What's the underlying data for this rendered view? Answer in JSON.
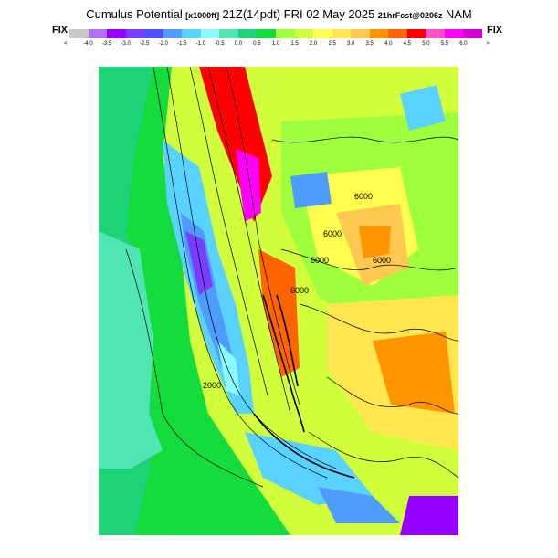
{
  "header": {
    "title_main": "Cumulus Potential",
    "title_units": "[x1000ft]",
    "title_time": "21Z(14pdt) FRI 02 May 2025",
    "title_fcst": "21hrFcst@0206z",
    "title_model": "NAM"
  },
  "scale": {
    "fix_left": "FIX",
    "fix_right": "FIX",
    "less_than": "<",
    "greater_than": ">",
    "tick_labels": [
      "-4.0",
      "-3.5",
      "-3.0",
      "-2.5",
      "-2.0",
      "-1.5",
      "-1.0",
      "-0.5",
      "0.0",
      "0.5",
      "1.0",
      "1.5",
      "2.0",
      "2.5",
      "3.0",
      "3.5",
      "4.0",
      "4.5",
      "5.0",
      "5.5",
      "6.0"
    ],
    "colors": [
      "#c8c8c8",
      "#b070f0",
      "#9600ff",
      "#7a3cff",
      "#5050ff",
      "#4f9cff",
      "#5ad2ff",
      "#8cfaff",
      "#50e6b4",
      "#1ed278",
      "#14dc3c",
      "#a0ff3c",
      "#d2ff3c",
      "#ffff50",
      "#ffe650",
      "#ffc850",
      "#ff9600",
      "#ff6400",
      "#ff0000",
      "#ff50c8",
      "#ff00ff",
      "#d200d2"
    ]
  },
  "map": {
    "contour_labels": [
      "6000",
      "6000",
      "6000",
      "6000",
      "6000",
      "2000"
    ]
  }
}
